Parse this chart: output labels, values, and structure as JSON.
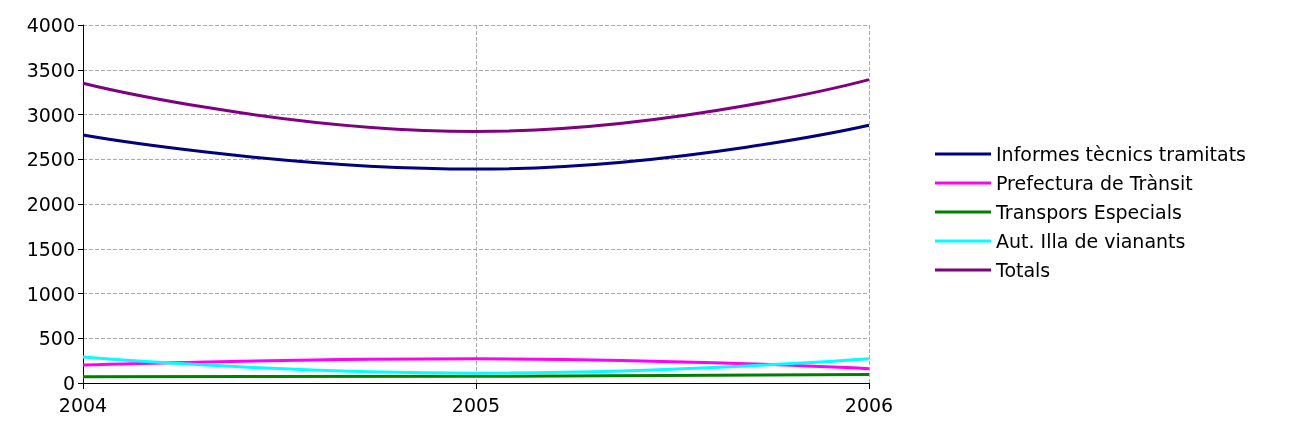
{
  "chart_data": {
    "type": "line",
    "x": [
      2004,
      2005,
      2006
    ],
    "series": [
      {
        "name": "Informes tècnics tramitats",
        "color": "#000080",
        "values": [
          2770,
          2390,
          2880
        ]
      },
      {
        "name": "Prefectura de Trànsit",
        "color": "#ff00ff",
        "values": [
          200,
          270,
          160
        ]
      },
      {
        "name": "Transpors Especials",
        "color": "#008000",
        "values": [
          70,
          75,
          95
        ]
      },
      {
        "name": "Aut. Illa de vianants",
        "color": "#00ffff",
        "values": [
          290,
          110,
          270
        ]
      },
      {
        "name": "Totals",
        "color": "#800080",
        "values": [
          3350,
          2810,
          3390
        ]
      }
    ],
    "xlim": [
      2004,
      2006
    ],
    "xticks": [
      2004,
      2005,
      2006
    ],
    "ylim": [
      0,
      4000
    ],
    "yticks": [
      0,
      500,
      1000,
      1500,
      2000,
      2500,
      3000,
      3500,
      4000
    ],
    "grid": true,
    "legend": "right",
    "marker": "none",
    "line_style": "solid"
  }
}
